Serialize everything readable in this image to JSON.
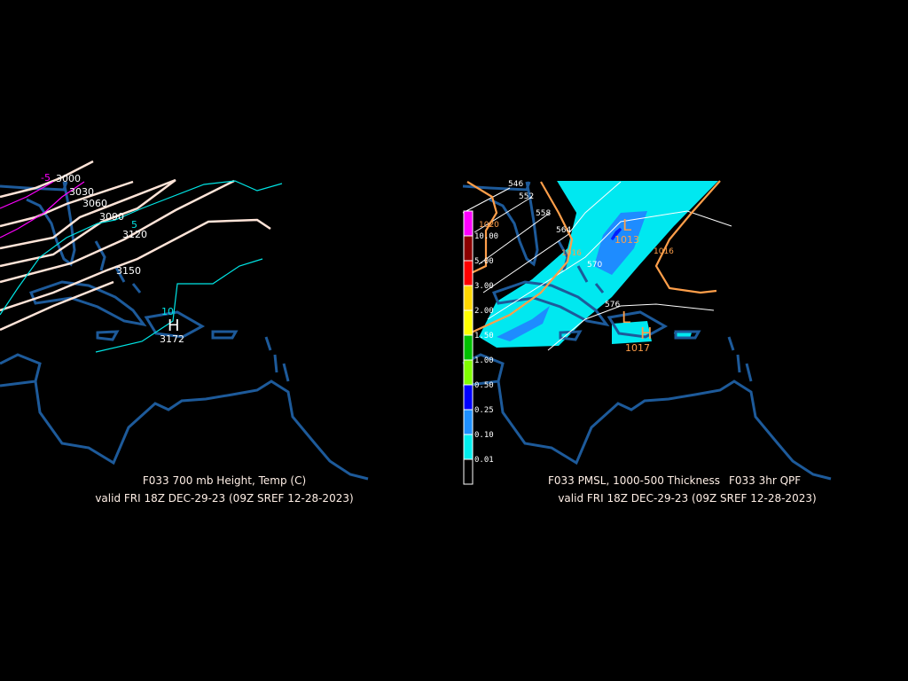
{
  "left_panel": {
    "title": "F033 700 mb Height, Temp (C)",
    "valid": "valid FRI 18Z DEC-29-23 (09Z SREF 12-28-2023)",
    "height_labels": [
      "3000",
      "3030",
      "3060",
      "3090",
      "3120",
      "3150",
      "3172"
    ],
    "temp_labels": [
      "-5",
      "5",
      "10"
    ],
    "high_marker": "H"
  },
  "right_panel": {
    "title_a": "F033 PMSL, 1000-500 Thickness",
    "title_b": "F033 3hr QPF",
    "valid": "valid FRI 18Z DEC-29-23 (09Z SREF 12-28-2023)",
    "thickness_labels": [
      "546",
      "552",
      "558",
      "564",
      "570",
      "576"
    ],
    "isobar_labels": [
      "1020",
      "1016",
      "1013",
      "1016",
      "1017"
    ],
    "low_marker": "L",
    "high_marker": "H",
    "colorbar": {
      "labels": [
        "10.00",
        "5.00",
        "3.00",
        "2.00",
        "1.50",
        "1.00",
        "0.50",
        "0.25",
        "0.10",
        "0.01"
      ],
      "colors": [
        "#ff00ff",
        "#8b0000",
        "#ff0000",
        "#ffd700",
        "#ffff00",
        "#00c000",
        "#80ff00",
        "#0000ff",
        "#1e90ff",
        "#00eeee",
        "#000000"
      ]
    }
  },
  "colors": {
    "coast": "#1d5a9a",
    "height": "#ffe4d8",
    "temp": "#00e5e5",
    "temp_cold": "#ff00ff",
    "isobar": "#ff9f4a",
    "qpf_light": "#00e8f0",
    "qpf_mid": "#1e8cff"
  }
}
